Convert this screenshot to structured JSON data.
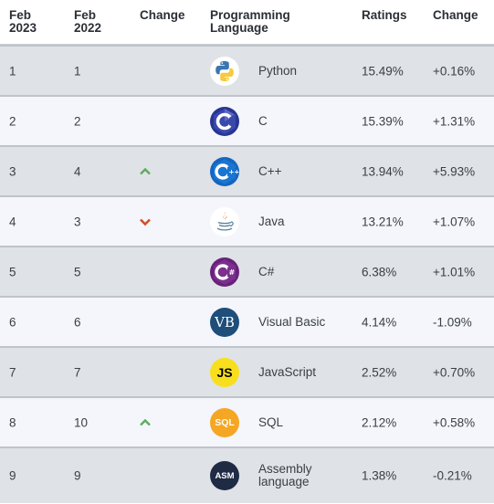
{
  "headers": {
    "feb2023": "Feb 2023",
    "feb2022": "Feb 2022",
    "change": "Change",
    "language": "Programming Language",
    "ratings": "Ratings",
    "change2": "Change"
  },
  "rows": [
    {
      "rank2023": "1",
      "rank2022": "1",
      "trend": "",
      "language": "Python",
      "icon": "python-icon",
      "rating": "15.49%",
      "change": "+0.16%"
    },
    {
      "rank2023": "2",
      "rank2022": "2",
      "trend": "",
      "language": "C",
      "icon": "c-icon",
      "rating": "15.39%",
      "change": "+1.31%"
    },
    {
      "rank2023": "3",
      "rank2022": "4",
      "trend": "up",
      "language": "C++",
      "icon": "cpp-icon",
      "rating": "13.94%",
      "change": "+5.93%"
    },
    {
      "rank2023": "4",
      "rank2022": "3",
      "trend": "down",
      "language": "Java",
      "icon": "java-icon",
      "rating": "13.21%",
      "change": "+1.07%"
    },
    {
      "rank2023": "5",
      "rank2022": "5",
      "trend": "",
      "language": "C#",
      "icon": "csharp-icon",
      "rating": "6.38%",
      "change": "+1.01%"
    },
    {
      "rank2023": "6",
      "rank2022": "6",
      "trend": "",
      "language": "Visual Basic",
      "icon": "visual-basic-icon",
      "rating": "4.14%",
      "change": "-1.09%"
    },
    {
      "rank2023": "7",
      "rank2022": "7",
      "trend": "",
      "language": "JavaScript",
      "icon": "javascript-icon",
      "rating": "2.52%",
      "change": "+0.70%"
    },
    {
      "rank2023": "8",
      "rank2022": "10",
      "trend": "up",
      "language": "SQL",
      "icon": "sql-icon",
      "rating": "2.12%",
      "change": "+0.58%"
    },
    {
      "rank2023": "9",
      "rank2022": "9",
      "trend": "",
      "language": "Assembly language",
      "icon": "assembly-icon",
      "rating": "1.38%",
      "change": "-0.21%"
    }
  ],
  "colors": {
    "up_arrow": "#5cae5c",
    "down_arrow": "#d0502a",
    "row_shade": "#dfe2e6",
    "row_light": "#f4f6fb"
  },
  "icon_text": {
    "vb": "VB",
    "js": "JS",
    "sql": "SQL",
    "asm": "ASM"
  }
}
